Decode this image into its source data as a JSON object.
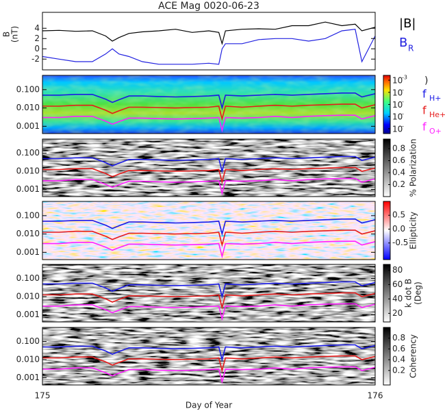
{
  "chart_data": [
    {
      "type": "line",
      "title": "ACE Mag 0020-06-23",
      "ylabel": [
        "B",
        "(nT)"
      ],
      "xlim": [
        175,
        176
      ],
      "ylim": [
        -4.1,
        7.1
      ],
      "yticks": [
        -2,
        0,
        2,
        4
      ],
      "x": [
        175,
        175.05,
        175.1,
        175.15,
        175.19,
        175.21,
        175.23,
        175.26,
        175.3,
        175.35,
        175.4,
        175.45,
        175.5,
        175.53,
        175.54,
        175.55,
        175.6,
        175.65,
        175.7,
        175.75,
        175.8,
        175.85,
        175.9,
        175.94,
        175.96,
        176
      ],
      "series": [
        {
          "name": "|B|",
          "color": "#000000",
          "values": [
            3.5,
            3.6,
            3.4,
            3.5,
            2.5,
            1.5,
            2.2,
            3,
            3.3,
            3.5,
            3.8,
            3.2,
            3.5,
            3.2,
            1,
            3.5,
            3.8,
            3.9,
            3.8,
            4.5,
            4.5,
            5.2,
            4.5,
            4.8,
            3.5,
            4.2
          ]
        },
        {
          "name": "B",
          "subscript": "R",
          "color": "#2020e0",
          "values": [
            -1.5,
            -2,
            -2.5,
            -2.5,
            -1,
            0,
            -1,
            -1.5,
            -2.5,
            -3,
            -3,
            -3,
            -2.8,
            -3,
            0,
            1,
            1,
            1.8,
            2,
            2,
            1.5,
            2,
            3.5,
            3.8,
            -2.5,
            2.5
          ]
        }
      ]
    },
    {
      "type": "spectrogram",
      "colormap": "jet",
      "log": true,
      "xlim": [
        175,
        176
      ],
      "ylim": [
        0.0004,
        0.6
      ],
      "yticks": [
        {
          "value": 0.001,
          "label": "0.001"
        },
        {
          "value": 0.01,
          "label": "0.010"
        },
        {
          "value": 0.1,
          "label": "0.100"
        }
      ],
      "colorbar_label": [
        ")"
      ],
      "clim": [
        -7.4,
        -2.6
      ],
      "cticks": [
        {
          "value": -3,
          "label": "10",
          "exponent": "-3"
        },
        {
          "value": -4,
          "label": "10",
          "exponent": "-"
        },
        {
          "value": -5,
          "label": "10",
          "exponent": "-"
        },
        {
          "value": -6,
          "label": "10",
          "exponent": "-"
        },
        {
          "value": -7,
          "label": "10",
          "exponent": "-"
        }
      ],
      "x": [
        175,
        175.05,
        175.1,
        175.15,
        175.19,
        175.21,
        175.23,
        175.26,
        175.3,
        175.35,
        175.4,
        175.45,
        175.5,
        175.53,
        175.54,
        175.55,
        175.6,
        175.65,
        175.7,
        175.75,
        175.8,
        175.85,
        175.9,
        175.94,
        175.96,
        176
      ],
      "series": [
        {
          "name": "f",
          "subscript": "H+",
          "color": "#1a1ae6",
          "values": [
            0.05,
            0.05,
            0.055,
            0.055,
            0.03,
            0.02,
            0.028,
            0.045,
            0.045,
            0.042,
            0.04,
            0.042,
            0.045,
            0.05,
            0.01,
            0.05,
            0.045,
            0.05,
            0.055,
            0.05,
            0.055,
            0.06,
            0.065,
            0.065,
            0.04,
            0.06
          ]
        },
        {
          "name": "f",
          "subscript": "He+",
          "color": "#e61a1a",
          "values": [
            0.0125,
            0.0125,
            0.014,
            0.014,
            0.0075,
            0.005,
            0.007,
            0.011,
            0.011,
            0.0105,
            0.01,
            0.0105,
            0.011,
            0.0125,
            0.0025,
            0.0125,
            0.011,
            0.0125,
            0.014,
            0.0125,
            0.014,
            0.015,
            0.016,
            0.016,
            0.01,
            0.015
          ]
        },
        {
          "name": "f",
          "subscript": "O+",
          "color": "#ff20ff",
          "values": [
            0.003,
            0.003,
            0.0035,
            0.0035,
            0.0019,
            0.0013,
            0.0018,
            0.0028,
            0.0028,
            0.0026,
            0.0025,
            0.0026,
            0.0028,
            0.003,
            0.0006,
            0.003,
            0.0028,
            0.003,
            0.0035,
            0.003,
            0.0035,
            0.0038,
            0.004,
            0.004,
            0.0025,
            0.0038
          ]
        }
      ]
    },
    {
      "type": "spectrogram",
      "colormap": "gray",
      "log": true,
      "xlim": [
        175,
        176
      ],
      "ylim": [
        0.0004,
        0.6
      ],
      "yticks": [
        {
          "value": 0.001,
          "label": "0.001"
        },
        {
          "value": 0.01,
          "label": "0.010"
        },
        {
          "value": 0.1,
          "label": "0.100"
        }
      ],
      "colorbar_label": [
        "% Polarization"
      ],
      "clim": [
        0,
        0.96
      ],
      "cticks": [
        0.2,
        0.4,
        0.6,
        0.8
      ]
    },
    {
      "type": "spectrogram",
      "colormap": "bwr",
      "log": true,
      "xlim": [
        175,
        176
      ],
      "ylim": [
        0.0004,
        0.6
      ],
      "yticks": [
        {
          "value": 0.001,
          "label": "0.001"
        },
        {
          "value": 0.01,
          "label": "0.010"
        },
        {
          "value": 0.1,
          "label": "0.100"
        }
      ],
      "colorbar_label": [
        "Ellipticity"
      ],
      "clim": [
        -1.1,
        1
      ],
      "cticks": [
        -0.5,
        {
          "value": 0,
          "label": "0.0"
        },
        0.5
      ]
    },
    {
      "type": "spectrogram",
      "colormap": "gray",
      "log": true,
      "xlim": [
        175,
        176
      ],
      "ylim": [
        0.0004,
        0.6
      ],
      "yticks": [
        {
          "value": 0.001,
          "label": "0.001"
        },
        {
          "value": 0.01,
          "label": "0.010"
        },
        {
          "value": 0.1,
          "label": "0.100"
        }
      ],
      "colorbar_label": [
        "k dot B",
        "(Deg)"
      ],
      "clim": [
        8,
        88
      ],
      "cticks": [
        20,
        40,
        60,
        80
      ]
    },
    {
      "type": "spectrogram",
      "colormap": "gray",
      "log": true,
      "xlim": [
        175,
        176
      ],
      "ylim": [
        0.0004,
        0.6
      ],
      "yticks": [
        {
          "value": 0.001,
          "label": "0.001"
        },
        {
          "value": 0.01,
          "label": "0.010"
        },
        {
          "value": 0.1,
          "label": "0.100"
        }
      ],
      "colorbar_label": [
        "Coherency"
      ],
      "clim": [
        -0.07,
        1
      ],
      "cticks": [
        0.2,
        0.4,
        0.6,
        0.8
      ],
      "xticks": [
        175,
        176
      ],
      "xlabel": "Day of Year"
    }
  ]
}
